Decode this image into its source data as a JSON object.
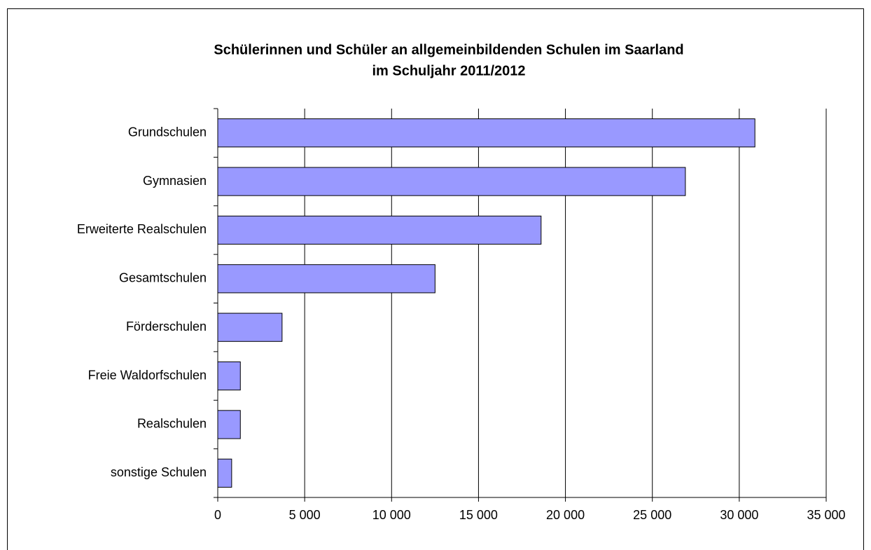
{
  "chart_data": {
    "type": "bar",
    "orientation": "horizontal",
    "title": [
      "Schülerinnen und Schüler an allgemeinbildenden Schulen im Saarland",
      "im Schuljahr 2011/2012"
    ],
    "categories": [
      "Grundschulen",
      "Gymnasien",
      "Erweiterte Realschulen",
      "Gesamtschulen",
      "Förderschulen",
      "Freie Waldorfschulen",
      "Realschulen",
      "sonstige Schulen"
    ],
    "values": [
      30900,
      26900,
      18600,
      12500,
      3700,
      1300,
      1300,
      800
    ],
    "color": "#9999ff",
    "xlim": [
      0,
      35000
    ],
    "xticks": [
      0,
      {
        "value": 5000,
        "label": "5 000"
      },
      {
        "value": 10000,
        "label": "10 000"
      },
      {
        "value": 15000,
        "label": "15 000"
      },
      {
        "value": 20000,
        "label": "20 000"
      },
      {
        "value": 25000,
        "label": "25 000"
      },
      {
        "value": 30000,
        "label": "30 000"
      },
      {
        "value": 35000,
        "label": "35 000"
      }
    ],
    "grid": true
  }
}
